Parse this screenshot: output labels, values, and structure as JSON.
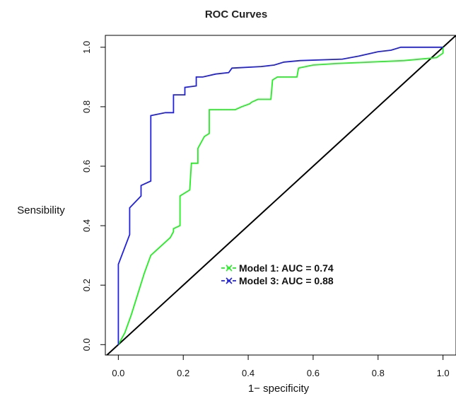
{
  "chart_data": {
    "type": "line",
    "title": "ROC Curves",
    "xlabel": "1− specificity",
    "ylabel": "Sensibility",
    "xlim": [
      -0.04,
      1.04
    ],
    "ylim": [
      -0.035,
      1.04
    ],
    "x_ticks": [
      "0.0",
      "0.2",
      "0.4",
      "0.6",
      "0.8",
      "1.0"
    ],
    "y_ticks": [
      "0.0",
      "0.2",
      "0.4",
      "0.6",
      "0.8",
      "1.0"
    ],
    "grid": false,
    "legend_position": "center-right",
    "reference_line": {
      "x": [
        -0.04,
        1.04
      ],
      "y": [
        -0.04,
        1.04
      ],
      "color": "#000000"
    },
    "series": [
      {
        "name": "Model 1: AUC = 0.74",
        "color": "#22ee22",
        "marker": "x",
        "x": [
          0.0,
          0.02,
          0.04,
          0.06,
          0.08,
          0.1,
          0.12,
          0.14,
          0.16,
          0.17,
          0.17,
          0.19,
          0.19,
          0.22,
          0.225,
          0.245,
          0.245,
          0.265,
          0.28,
          0.28,
          0.36,
          0.38,
          0.405,
          0.41,
          0.43,
          0.47,
          0.475,
          0.49,
          0.5,
          0.55,
          0.555,
          0.6,
          0.67,
          0.88,
          0.98,
          1.0,
          1.0
        ],
        "y": [
          0.0,
          0.04,
          0.1,
          0.17,
          0.24,
          0.3,
          0.32,
          0.34,
          0.36,
          0.38,
          0.39,
          0.4,
          0.5,
          0.52,
          0.61,
          0.61,
          0.66,
          0.7,
          0.71,
          0.79,
          0.79,
          0.8,
          0.81,
          0.815,
          0.825,
          0.825,
          0.89,
          0.9,
          0.9,
          0.9,
          0.93,
          0.94,
          0.945,
          0.955,
          0.965,
          0.98,
          1.0
        ]
      },
      {
        "name": "Model 3: AUC = 0.88",
        "color": "#2222dd",
        "marker": "x",
        "x": [
          0.0,
          0.0,
          0.035,
          0.035,
          0.07,
          0.07,
          0.1,
          0.1,
          0.145,
          0.17,
          0.17,
          0.205,
          0.205,
          0.24,
          0.24,
          0.26,
          0.3,
          0.34,
          0.35,
          0.44,
          0.48,
          0.51,
          0.56,
          0.69,
          0.74,
          0.8,
          0.84,
          0.87,
          1.0
        ],
        "y": [
          0.0,
          0.27,
          0.37,
          0.46,
          0.5,
          0.535,
          0.55,
          0.77,
          0.78,
          0.78,
          0.84,
          0.84,
          0.865,
          0.87,
          0.9,
          0.9,
          0.91,
          0.915,
          0.93,
          0.935,
          0.94,
          0.95,
          0.955,
          0.96,
          0.97,
          0.985,
          0.99,
          1.0,
          1.0
        ]
      }
    ]
  }
}
